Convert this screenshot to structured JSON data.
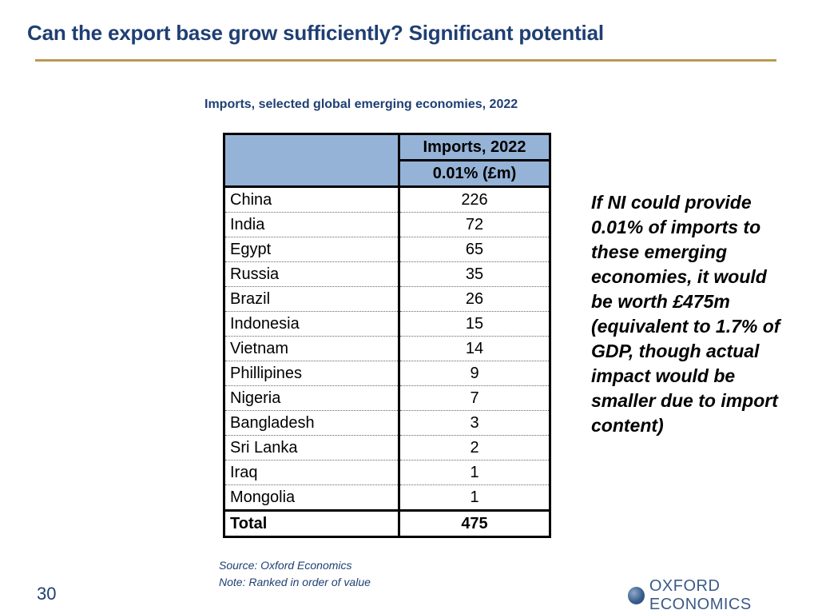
{
  "slide": {
    "title": "Can the export base grow sufficiently? Significant potential",
    "page_number": "30"
  },
  "table": {
    "title": "Imports, selected global emerging economies, 2022",
    "header_1": "Imports, 2022",
    "header_2": "0.01% (£m)",
    "rows": [
      {
        "country": "China",
        "value": "226"
      },
      {
        "country": "India",
        "value": "72"
      },
      {
        "country": "Egypt",
        "value": "65"
      },
      {
        "country": "Russia",
        "value": "35"
      },
      {
        "country": "Brazil",
        "value": "26"
      },
      {
        "country": "Indonesia",
        "value": "15"
      },
      {
        "country": "Vietnam",
        "value": "14"
      },
      {
        "country": "Phillipines",
        "value": "9"
      },
      {
        "country": "Nigeria",
        "value": "7"
      },
      {
        "country": "Bangladesh",
        "value": "3"
      },
      {
        "country": "Sri Lanka",
        "value": "2"
      },
      {
        "country": "Iraq",
        "value": "1"
      },
      {
        "country": "Mongolia",
        "value": "1"
      }
    ],
    "total_label": "Total",
    "total_value": "475"
  },
  "side_note": "If NI could provide 0.01% of imports to these emerging economies, it would be worth £475m (equivalent to 1.7% of GDP, though actual impact would be smaller due to import content)",
  "source": {
    "line_1": "Source: Oxford Economics",
    "line_2": "Note: Ranked in order of value"
  },
  "logo": {
    "icon": "globe-icon",
    "text": "OXFORD ECONOMICS"
  },
  "colors": {
    "title": "#1f3f73",
    "rule": "#b89a55",
    "header_fill": "#95b3d7"
  }
}
